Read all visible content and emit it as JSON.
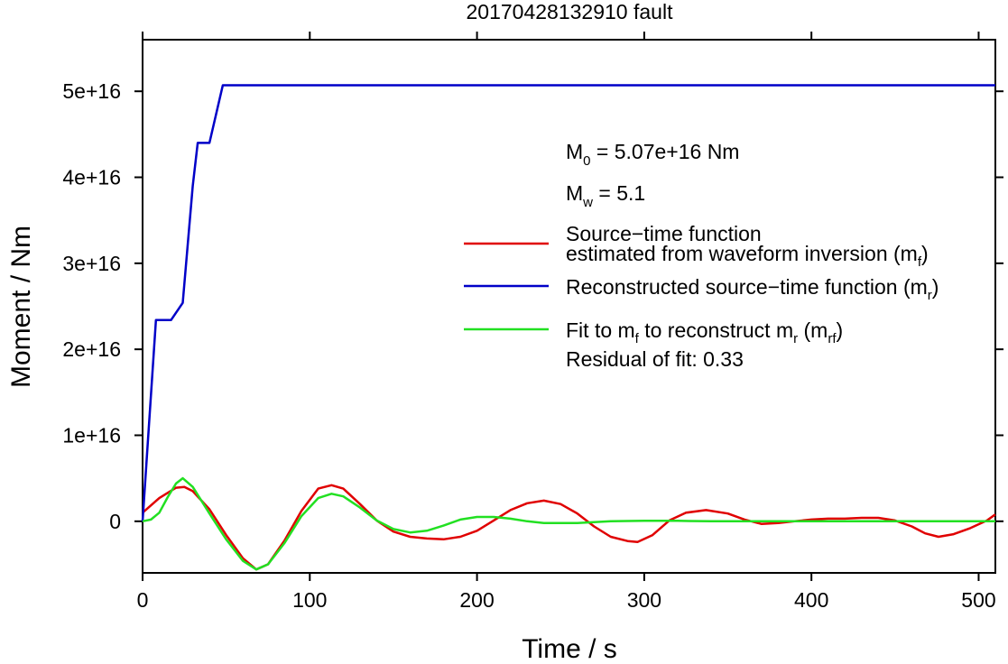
{
  "chart_data": {
    "type": "line",
    "title": "20170428132910 fault",
    "xlabel": "Time / s",
    "ylabel": "Moment / Nm",
    "xlim": [
      0,
      510
    ],
    "ylim": [
      -6000000000000000.0,
      5.6e+16
    ],
    "xticks": [
      {
        "value": 0,
        "label": "0"
      },
      {
        "value": 100,
        "label": "100"
      },
      {
        "value": 200,
        "label": "200"
      },
      {
        "value": 300,
        "label": "300"
      },
      {
        "value": 400,
        "label": "400"
      },
      {
        "value": 500,
        "label": "500"
      }
    ],
    "yticks": [
      {
        "value": 0,
        "label": "0"
      },
      {
        "value": 1e+16,
        "label": "1e+16"
      },
      {
        "value": 2e+16,
        "label": "2e+16"
      },
      {
        "value": 3e+16,
        "label": "3e+16"
      },
      {
        "value": 4e+16,
        "label": "4e+16"
      },
      {
        "value": 5e+16,
        "label": "5e+16"
      }
    ],
    "grid": false,
    "legend_placement": "right",
    "annotations": {
      "m0": {
        "symbol": "M",
        "sub": "0",
        "text": " = 5.07e+16 Nm"
      },
      "mw": {
        "symbol": "M",
        "sub": "w",
        "text": " = 5.1"
      },
      "residual": "Residual of fit: 0.33"
    },
    "legend": [
      {
        "series": "red",
        "line1": "Source−time function",
        "line2": "estimated from waveform inversion (m",
        "sub": "f",
        "tail": ")"
      },
      {
        "series": "blue",
        "line1": "Reconstructed source−time function (m",
        "sub": "r",
        "tail": ")"
      },
      {
        "series": "green",
        "line1": "Fit to m",
        "sub": "f",
        "mid": " to reconstruct m",
        "sub2": "r",
        "mid2": " (m",
        "sub3": "rf",
        "tail": ")"
      }
    ],
    "series": [
      {
        "id": "red",
        "color": "#e00000",
        "x": [
          0,
          10,
          20,
          25,
          30,
          40,
          50,
          60,
          68,
          75,
          85,
          95,
          105,
          113,
          120,
          130,
          140,
          150,
          160,
          170,
          180,
          190,
          200,
          210,
          220,
          230,
          240,
          250,
          260,
          270,
          280,
          290,
          296,
          305,
          315,
          325,
          337,
          350,
          360,
          370,
          380,
          390,
          400,
          410,
          420,
          430,
          440,
          450,
          460,
          468,
          476,
          485,
          495,
          505,
          510
        ],
        "y": [
          1000000000000000.0,
          2700000000000000.0,
          3900000000000000.0,
          4000000000000000.0,
          3500000000000000.0,
          1400000000000000.0,
          -1600000000000000.0,
          -4300000000000000.0,
          -5600000000000000.0,
          -5000000000000000.0,
          -2200000000000000.0,
          1200000000000000.0,
          3800000000000000.0,
          4200000000000000.0,
          3800000000000000.0,
          2000000000000000.0,
          100000000000000.0,
          -1200000000000000.0,
          -1800000000000000.0,
          -2000000000000000.0,
          -2100000000000000.0,
          -1800000000000000.0,
          -1100000000000000.0,
          100000000000000.0,
          1300000000000000.0,
          2100000000000000.0,
          2400000000000000.0,
          2000000000000000.0,
          900000000000000.0,
          -600000000000000.0,
          -1800000000000000.0,
          -2300000000000000.0,
          -2400000000000000.0,
          -1600000000000000.0,
          100000000000000.0,
          1000000000000000.0,
          1300000000000000.0,
          900000000000000.0,
          200000000000000.0,
          -300000000000000.0,
          -200000000000000.0,
          0.0,
          200000000000000.0,
          300000000000000.0,
          300000000000000.0,
          400000000000000.0,
          400000000000000.0,
          100000000000000.0,
          -600000000000000.0,
          -1400000000000000.0,
          -1800000000000000.0,
          -1500000000000000.0,
          -800000000000000.0,
          100000000000000.0,
          800000000000000.0
        ]
      },
      {
        "id": "blue",
        "color": "#0000c8",
        "x": [
          0,
          8,
          17,
          24,
          30,
          33,
          40,
          48,
          510
        ],
        "y": [
          0,
          2.34e+16,
          2.34e+16,
          2.54e+16,
          3.9e+16,
          4.4e+16,
          4.4e+16,
          5.07e+16,
          5.07e+16
        ]
      },
      {
        "id": "green",
        "color": "#22e022",
        "x": [
          0,
          5,
          10,
          15,
          20,
          24,
          30,
          40,
          50,
          60,
          68,
          75,
          85,
          95,
          105,
          113,
          120,
          130,
          140,
          150,
          160,
          170,
          180,
          190,
          200,
          210,
          220,
          230,
          240,
          250,
          260,
          270,
          280,
          300,
          320,
          340,
          360,
          380,
          400,
          420,
          440,
          460,
          480,
          500,
          510
        ],
        "y": [
          0.0,
          200000000000000.0,
          1000000000000000.0,
          2800000000000000.0,
          4400000000000000.0,
          5000000000000000.0,
          4000000000000000.0,
          900000000000000.0,
          -2100000000000000.0,
          -4600000000000000.0,
          -5600000000000000.0,
          -5000000000000000.0,
          -2500000000000000.0,
          600000000000000.0,
          2700000000000000.0,
          3200000000000000.0,
          2900000000000000.0,
          1600000000000000.0,
          100000000000000.0,
          -900000000000000.0,
          -1300000000000000.0,
          -1100000000000000.0,
          -500000000000000.0,
          200000000000000.0,
          500000000000000.0,
          500000000000000.0,
          300000000000000.0,
          0.0,
          -200000000000000.0,
          -200000000000000.0,
          -200000000000000.0,
          -100000000000000.0,
          0.0,
          50000000000000.0,
          50000000000000.0,
          0.0,
          0.0,
          0.0,
          0.0,
          0.0,
          0.0,
          0.0,
          0.0,
          0.0,
          0.0
        ]
      }
    ]
  }
}
